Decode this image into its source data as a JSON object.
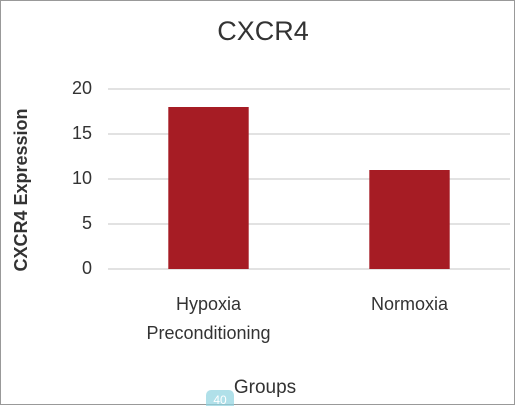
{
  "chart_data": {
    "type": "bar",
    "title": "CXCR4",
    "y_label": "CXCR4 Expression",
    "x_label": "Groups",
    "categories": [
      "Hypoxia Preconditioning",
      "Normoxia"
    ],
    "values": [
      18,
      11
    ],
    "color": "#a61c24",
    "ylim": [
      0,
      20
    ],
    "yticks": [
      0,
      5,
      10,
      15,
      20
    ],
    "grid": true,
    "page_badge": "40"
  }
}
